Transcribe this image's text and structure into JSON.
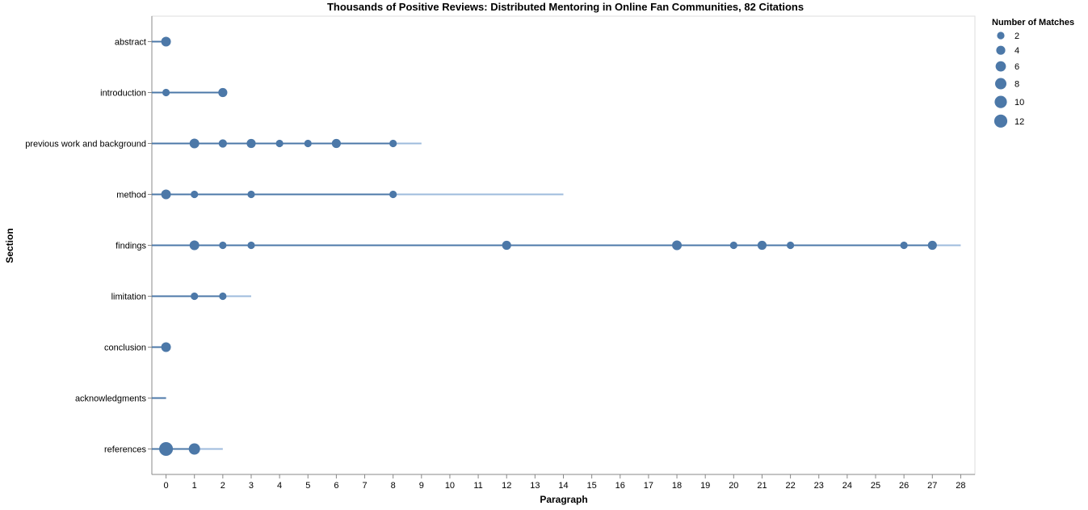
{
  "chart_data": {
    "type": "scatter",
    "title": "Thousands of Positive Reviews: Distributed Mentoring in Online Fan Communities, 82 Citations",
    "xlabel": "Paragraph",
    "ylabel": "Section",
    "xlim": [
      -0.5,
      28.5
    ],
    "x_ticks": [
      0,
      1,
      2,
      3,
      4,
      5,
      6,
      7,
      8,
      9,
      10,
      11,
      12,
      13,
      14,
      15,
      16,
      17,
      18,
      19,
      20,
      21,
      22,
      23,
      24,
      25,
      26,
      27,
      28
    ],
    "categories": [
      "abstract",
      "introduction",
      "previous work and background",
      "method",
      "findings",
      "limitation",
      "conclusion",
      "acknowledgments",
      "references"
    ],
    "colors": {
      "mark": "#4c78a8",
      "rule_dark": "#4c78a8",
      "rule_light": "#9ebbdc",
      "axis": "#888888"
    },
    "legend": {
      "title": "Number of Matches",
      "placement": "top-right",
      "sizes": [
        2,
        4,
        6,
        8,
        10,
        12
      ]
    },
    "sections": [
      {
        "name": "abstract",
        "total_paragraphs": 0,
        "points": [
          {
            "x": 0,
            "matches": 5
          }
        ]
      },
      {
        "name": "introduction",
        "total_paragraphs": 2,
        "points": [
          {
            "x": 0,
            "matches": 2
          },
          {
            "x": 2,
            "matches": 4
          }
        ]
      },
      {
        "name": "previous work and background",
        "total_paragraphs": 9,
        "points": [
          {
            "x": 1,
            "matches": 5
          },
          {
            "x": 2,
            "matches": 3
          },
          {
            "x": 3,
            "matches": 4
          },
          {
            "x": 4,
            "matches": 2
          },
          {
            "x": 5,
            "matches": 2
          },
          {
            "x": 6,
            "matches": 4
          },
          {
            "x": 8,
            "matches": 2
          }
        ]
      },
      {
        "name": "method",
        "total_paragraphs": 14,
        "points": [
          {
            "x": 0,
            "matches": 5
          },
          {
            "x": 1,
            "matches": 2
          },
          {
            "x": 3,
            "matches": 2
          },
          {
            "x": 8,
            "matches": 2
          }
        ]
      },
      {
        "name": "findings",
        "total_paragraphs": 28,
        "points": [
          {
            "x": 1,
            "matches": 5
          },
          {
            "x": 2,
            "matches": 2
          },
          {
            "x": 3,
            "matches": 2
          },
          {
            "x": 12,
            "matches": 4
          },
          {
            "x": 18,
            "matches": 5
          },
          {
            "x": 20,
            "matches": 2
          },
          {
            "x": 21,
            "matches": 4
          },
          {
            "x": 22,
            "matches": 2
          },
          {
            "x": 26,
            "matches": 2
          },
          {
            "x": 27,
            "matches": 4
          }
        ]
      },
      {
        "name": "limitation",
        "total_paragraphs": 3,
        "points": [
          {
            "x": 1,
            "matches": 2
          },
          {
            "x": 2,
            "matches": 2
          }
        ]
      },
      {
        "name": "conclusion",
        "total_paragraphs": 0,
        "points": [
          {
            "x": 0,
            "matches": 5
          }
        ]
      },
      {
        "name": "acknowledgments",
        "total_paragraphs": 0,
        "points": []
      },
      {
        "name": "references",
        "total_paragraphs": 2,
        "points": [
          {
            "x": 0,
            "matches": 14
          },
          {
            "x": 1,
            "matches": 8
          }
        ]
      }
    ]
  }
}
